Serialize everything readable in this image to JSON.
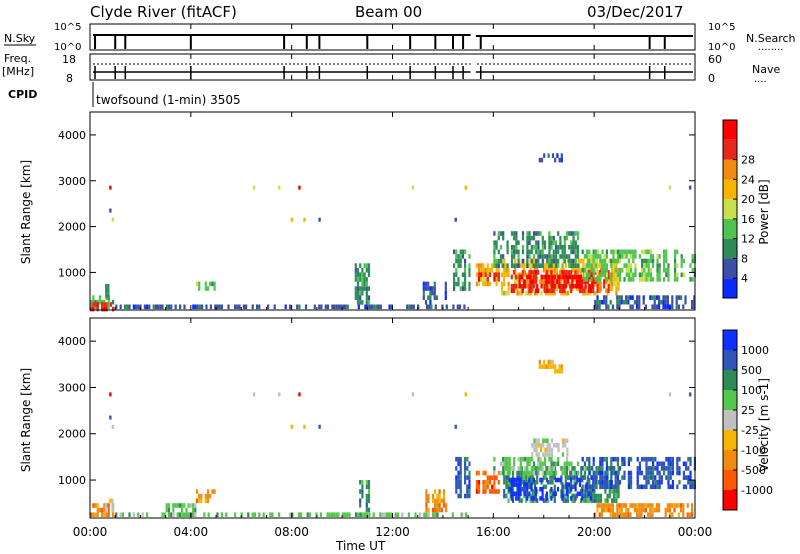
{
  "header": {
    "station": "Clyde River (fitACF)",
    "beam": "Beam 00",
    "date": "03/Dec/2017"
  },
  "status_panels": {
    "nsky_label": "N.Sky",
    "nsearch_label": "N.Search",
    "nsearch_legend": "........",
    "left_scale_top": "10^5",
    "left_scale_bottom": "10^0",
    "right_scale_top": "10^5",
    "right_scale_bottom": "10^0",
    "freq_label": "Freq.",
    "freq_unit": "[MHz]",
    "freq_top": "18",
    "freq_bottom": "8",
    "nave_label": "Nave",
    "nave_legend": "....",
    "nave_top": "60",
    "nave_bottom": "0",
    "cpid_label": "CPID",
    "cpid_text": "twofsound (1-min) 3505"
  },
  "axes": {
    "ylabel": "Slant Range [km]",
    "yticks": [
      "1000",
      "2000",
      "3000",
      "4000"
    ],
    "xlabel": "Time UT",
    "xticks": [
      "00:00",
      "04:00",
      "08:00",
      "12:00",
      "16:00",
      "20:00",
      "00:00"
    ]
  },
  "colorbars": {
    "power": {
      "title": "Power [dB]",
      "ticks": [
        "4",
        "8",
        "12",
        "16",
        "20",
        "24",
        "28"
      ],
      "colors": [
        "#0a2aff",
        "#3a4fa6",
        "#2e8b57",
        "#4fc34f",
        "#c8e04a",
        "#f7b500",
        "#f08a10",
        "#e8271b",
        "#ff0000"
      ]
    },
    "velocity": {
      "title": "Velocity [m s-1]",
      "ticks": [
        "1000",
        "500",
        "100",
        "25",
        "-25",
        "-100",
        "-500",
        "-1000"
      ],
      "colors": [
        "#1030ff",
        "#2f55b8",
        "#2e8b57",
        "#55c84a",
        "#c0c0c0",
        "#f7b500",
        "#f08a10",
        "#ff5a00",
        "#ff0000"
      ]
    }
  },
  "chart_data": {
    "type": "heatmap",
    "x_range_hours": [
      0,
      24
    ],
    "y_range_km": [
      180,
      4500
    ],
    "gap_hours": [
      15.1,
      15.3
    ],
    "power_regions": [
      {
        "t": [
          0.0,
          1.0
        ],
        "r": [
          180,
          500
        ],
        "level": 3
      },
      {
        "t": [
          0.0,
          1.0
        ],
        "r": [
          180,
          350
        ],
        "level": 7
      },
      {
        "t": [
          0.6,
          0.8
        ],
        "r": [
          450,
          950
        ],
        "level": 2
      },
      {
        "t": [
          4.2,
          5.0
        ],
        "r": [
          550,
          800
        ],
        "level": 3
      },
      {
        "t": [
          1.0,
          8.0
        ],
        "r": [
          180,
          300
        ],
        "level": 1
      },
      {
        "t": [
          8.0,
          15.0
        ],
        "r": [
          180,
          300
        ],
        "level": 1
      },
      {
        "t": [
          10.5,
          11.2
        ],
        "r": [
          300,
          1200
        ],
        "level": 2
      },
      {
        "t": [
          13.2,
          14.2
        ],
        "r": [
          300,
          800
        ],
        "level": 1
      },
      {
        "t": [
          14.4,
          15.1
        ],
        "r": [
          600,
          1500
        ],
        "level": 2
      },
      {
        "t": [
          15.3,
          16.3
        ],
        "r": [
          700,
          1200
        ],
        "level": 5
      },
      {
        "t": [
          15.3,
          16.3
        ],
        "r": [
          800,
          1000
        ],
        "level": 7
      },
      {
        "t": [
          16.3,
          21.0
        ],
        "r": [
          500,
          1300
        ],
        "level": 5
      },
      {
        "t": [
          16.6,
          20.6
        ],
        "r": [
          550,
          1050
        ],
        "level": 7
      },
      {
        "t": [
          17.0,
          20.0
        ],
        "r": [
          650,
          950
        ],
        "level": 8
      },
      {
        "t": [
          19.5,
          24.0
        ],
        "r": [
          800,
          1500
        ],
        "level": 3
      },
      {
        "t": [
          16.0,
          19.5
        ],
        "r": [
          1100,
          1900
        ],
        "level": 2
      },
      {
        "t": [
          17.8,
          18.8
        ],
        "r": [
          3350,
          3600
        ],
        "level": 1
      },
      {
        "t": [
          20.0,
          24.0
        ],
        "r": [
          180,
          500
        ],
        "level": 1
      }
    ],
    "velocity_regions": [
      {
        "t": [
          0.0,
          1.0
        ],
        "r": [
          180,
          500
        ],
        "level": 6
      },
      {
        "t": [
          0.5,
          1.0
        ],
        "r": [
          300,
          700
        ],
        "level": 4
      },
      {
        "t": [
          3.0,
          4.2
        ],
        "r": [
          180,
          500
        ],
        "level": 3
      },
      {
        "t": [
          4.2,
          5.0
        ],
        "r": [
          550,
          800
        ],
        "level": 6
      },
      {
        "t": [
          1.0,
          15.0
        ],
        "r": [
          180,
          300
        ],
        "level": 3
      },
      {
        "t": [
          10.5,
          11.2
        ],
        "r": [
          300,
          1000
        ],
        "level": 2
      },
      {
        "t": [
          13.3,
          14.2
        ],
        "r": [
          300,
          800
        ],
        "level": 6
      },
      {
        "t": [
          14.4,
          15.1
        ],
        "r": [
          600,
          1500
        ],
        "level": 1
      },
      {
        "t": [
          15.3,
          16.3
        ],
        "r": [
          700,
          1200
        ],
        "level": 7
      },
      {
        "t": [
          16.3,
          21.0
        ],
        "r": [
          500,
          1300
        ],
        "level": 2
      },
      {
        "t": [
          16.6,
          20.0
        ],
        "r": [
          550,
          1050
        ],
        "level": 0
      },
      {
        "t": [
          17.5,
          19.0
        ],
        "r": [
          1500,
          1900
        ],
        "level": 4
      },
      {
        "t": [
          16.0,
          19.5
        ],
        "r": [
          1100,
          1500
        ],
        "level": 3
      },
      {
        "t": [
          19.5,
          24.0
        ],
        "r": [
          800,
          1500
        ],
        "level": 1
      },
      {
        "t": [
          17.8,
          18.8
        ],
        "r": [
          3350,
          3600
        ],
        "level": 5
      },
      {
        "t": [
          20.0,
          24.0
        ],
        "r": [
          180,
          500
        ],
        "level": 6
      }
    ],
    "scattered_points": [
      {
        "t": 0.8,
        "r": 2850,
        "level": 8
      },
      {
        "t": 0.8,
        "r": 2350,
        "level": 1
      },
      {
        "t": 0.9,
        "r": 2150,
        "level": 4
      },
      {
        "t": 6.5,
        "r": 2850,
        "level": 4
      },
      {
        "t": 7.5,
        "r": 2850,
        "level": 4
      },
      {
        "t": 8.3,
        "r": 2850,
        "level": 8
      },
      {
        "t": 8.0,
        "r": 2150,
        "level": 5
      },
      {
        "t": 8.5,
        "r": 2150,
        "level": 5
      },
      {
        "t": 9.1,
        "r": 2150,
        "level": 1
      },
      {
        "t": 12.8,
        "r": 2850,
        "level": 4
      },
      {
        "t": 14.5,
        "r": 2150,
        "level": 1
      },
      {
        "t": 14.9,
        "r": 2850,
        "level": 5
      },
      {
        "t": 23.0,
        "r": 2850,
        "level": 4
      },
      {
        "t": 23.8,
        "r": 2850,
        "level": 1
      }
    ]
  }
}
